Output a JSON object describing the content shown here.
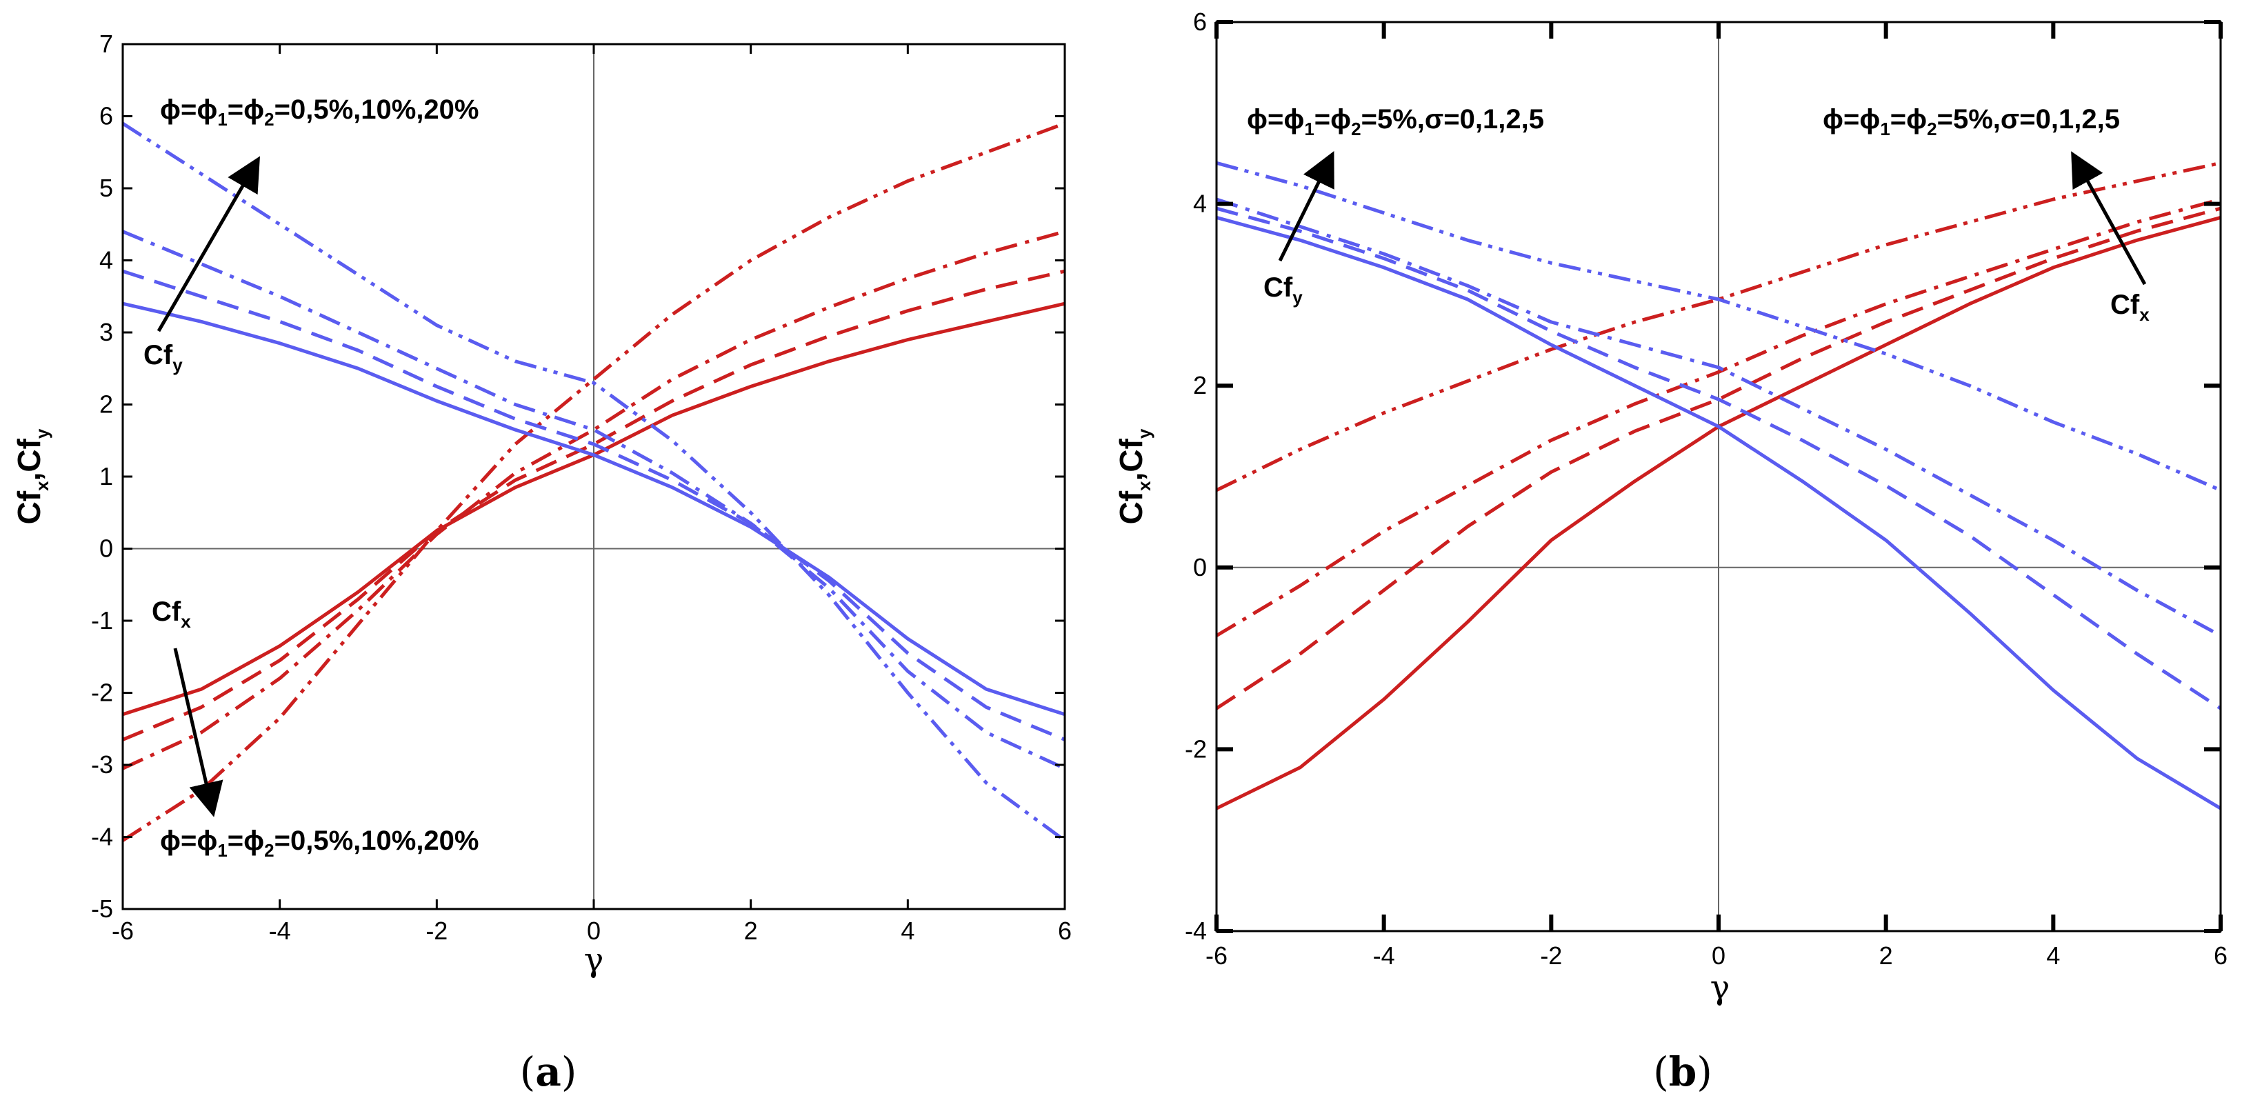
{
  "colors": {
    "red": "#cc1f1f",
    "blue": "#5a5cf0",
    "axis": "#000000",
    "ref": "#666666"
  },
  "chart_data": [
    {
      "type": "line",
      "panel": "a",
      "caption": {
        "open": "(",
        "letter": "a",
        "close": ")"
      },
      "xlabel": "γ",
      "ylabel": {
        "main1": "Cf",
        "sub1": "x",
        "sep": ",Cf",
        "sub2": "y"
      },
      "xlim": [
        -6,
        6
      ],
      "ylim": [
        -5,
        7
      ],
      "xticks": [
        -6,
        -4,
        -2,
        0,
        2,
        4,
        6
      ],
      "yticks": [
        -5,
        -4,
        -3,
        -2,
        -1,
        0,
        1,
        2,
        3,
        4,
        5,
        6,
        7
      ],
      "series": [
        {
          "name": "Cfx φ=0",
          "color": "red",
          "dash": "solid",
          "x": [
            -6,
            -5,
            -4,
            -3,
            -2,
            -1,
            0,
            1,
            2,
            3,
            4,
            5,
            6
          ],
          "y": [
            -2.3,
            -1.95,
            -1.35,
            -0.6,
            0.25,
            0.85,
            1.3,
            1.85,
            2.25,
            2.6,
            2.9,
            3.15,
            3.4
          ]
        },
        {
          "name": "Cfx φ=5%",
          "color": "red",
          "dash": "dash",
          "x": [
            -6,
            -5,
            -4,
            -3,
            -2,
            -1,
            0,
            1,
            2,
            3,
            4,
            5,
            6
          ],
          "y": [
            -2.65,
            -2.2,
            -1.55,
            -0.7,
            0.25,
            0.95,
            1.45,
            2.05,
            2.55,
            2.95,
            3.3,
            3.6,
            3.85
          ]
        },
        {
          "name": "Cfx φ=10%",
          "color": "red",
          "dash": "dashdot",
          "x": [
            -6,
            -5,
            -4,
            -3,
            -2,
            -1,
            0,
            1,
            2,
            3,
            4,
            5,
            6
          ],
          "y": [
            -3.05,
            -2.55,
            -1.8,
            -0.85,
            0.2,
            1.05,
            1.65,
            2.35,
            2.9,
            3.35,
            3.75,
            4.1,
            4.4
          ]
        },
        {
          "name": "Cfx φ=20%",
          "color": "red",
          "dash": "dashdotdot",
          "x": [
            -6,
            -5,
            -4,
            -3,
            -2,
            -1,
            0,
            1,
            2,
            3,
            4,
            5,
            6
          ],
          "y": [
            -4.05,
            -3.35,
            -2.35,
            -1.05,
            0.25,
            1.45,
            2.35,
            3.25,
            4.0,
            4.6,
            5.1,
            5.5,
            5.9
          ]
        },
        {
          "name": "Cfy φ=0",
          "color": "blue",
          "dash": "solid",
          "x": [
            -6,
            -5,
            -4,
            -3,
            -2,
            -1,
            0,
            1,
            2,
            3,
            4,
            5,
            6
          ],
          "y": [
            3.4,
            3.15,
            2.85,
            2.5,
            2.05,
            1.65,
            1.3,
            0.85,
            0.3,
            -0.4,
            -1.25,
            -1.95,
            -2.3
          ]
        },
        {
          "name": "Cfy φ=5%",
          "color": "blue",
          "dash": "dash",
          "x": [
            -6,
            -5,
            -4,
            -3,
            -2,
            -1,
            0,
            1,
            2,
            3,
            4,
            5,
            6
          ],
          "y": [
            3.85,
            3.5,
            3.15,
            2.75,
            2.25,
            1.8,
            1.45,
            0.95,
            0.35,
            -0.45,
            -1.45,
            -2.2,
            -2.65
          ]
        },
        {
          "name": "Cfy φ=10%",
          "color": "blue",
          "dash": "dashdot",
          "x": [
            -6,
            -5,
            -4,
            -3,
            -2,
            -1,
            0,
            1,
            2,
            3,
            4,
            5,
            6
          ],
          "y": [
            4.4,
            3.95,
            3.5,
            3.0,
            2.5,
            2.0,
            1.65,
            1.05,
            0.35,
            -0.55,
            -1.7,
            -2.55,
            -3.05
          ]
        },
        {
          "name": "Cfy φ=20%",
          "color": "blue",
          "dash": "dashdotdot",
          "x": [
            -6,
            -5,
            -4,
            -3,
            -2,
            -1,
            0,
            1,
            2,
            3,
            4,
            5,
            6
          ],
          "y": [
            5.9,
            5.2,
            4.5,
            3.8,
            3.1,
            2.6,
            2.3,
            1.5,
            0.5,
            -0.65,
            -2.0,
            -3.25,
            -4.05
          ]
        }
      ],
      "annotations": {
        "top": {
          "pre": "ϕ=ϕ",
          "s1": "1",
          "mid": "=ϕ",
          "s2": "2",
          "post": "=0,5%,10%,20%"
        },
        "bottom": {
          "pre": "ϕ=ϕ",
          "s1": "1",
          "mid": "=ϕ",
          "s2": "2",
          "post": "=0,5%,10%,20%"
        },
        "cfy": {
          "main": "Cf",
          "sub": "y"
        },
        "cfx": {
          "main": "Cf",
          "sub": "x"
        }
      }
    },
    {
      "type": "line",
      "panel": "b",
      "caption": {
        "open": "(",
        "letter": "b",
        "close": ")"
      },
      "xlabel": "γ",
      "ylabel": {
        "main1": "Cf",
        "sub1": "x",
        "sep": ",Cf",
        "sub2": "y"
      },
      "xlim": [
        -6,
        6
      ],
      "ylim": [
        -4,
        6
      ],
      "xticks": [
        -6,
        -4,
        -2,
        0,
        2,
        4,
        6
      ],
      "yticks": [
        -4,
        -2,
        0,
        2,
        4,
        6
      ],
      "series": [
        {
          "name": "Cfx σ=0",
          "color": "red",
          "dash": "solid",
          "x": [
            -6,
            -5,
            -4,
            -3,
            -2,
            -1,
            0,
            1,
            2,
            3,
            4,
            5,
            6
          ],
          "y": [
            -2.65,
            -2.2,
            -1.45,
            -0.6,
            0.3,
            0.95,
            1.55,
            2.0,
            2.45,
            2.9,
            3.3,
            3.6,
            3.85
          ]
        },
        {
          "name": "Cfx σ=1",
          "color": "red",
          "dash": "dash",
          "x": [
            -6,
            -5,
            -4,
            -3,
            -2,
            -1,
            0,
            1,
            2,
            3,
            4,
            5,
            6
          ],
          "y": [
            -1.55,
            -0.95,
            -0.25,
            0.45,
            1.05,
            1.5,
            1.85,
            2.3,
            2.7,
            3.05,
            3.4,
            3.7,
            3.95
          ]
        },
        {
          "name": "Cfx σ=2",
          "color": "red",
          "dash": "dashdot",
          "x": [
            -6,
            -5,
            -4,
            -3,
            -2,
            -1,
            0,
            1,
            2,
            3,
            4,
            5,
            6
          ],
          "y": [
            -0.75,
            -0.2,
            0.4,
            0.9,
            1.4,
            1.8,
            2.15,
            2.55,
            2.9,
            3.2,
            3.5,
            3.8,
            4.05
          ]
        },
        {
          "name": "Cfx σ=5",
          "color": "red",
          "dash": "dashdotdot",
          "x": [
            -6,
            -5,
            -4,
            -3,
            -2,
            -1,
            0,
            1,
            2,
            3,
            4,
            5,
            6
          ],
          "y": [
            0.85,
            1.3,
            1.7,
            2.05,
            2.4,
            2.7,
            2.95,
            3.25,
            3.55,
            3.8,
            4.05,
            4.25,
            4.45
          ]
        },
        {
          "name": "Cfy σ=0",
          "color": "blue",
          "dash": "solid",
          "x": [
            -6,
            -5,
            -4,
            -3,
            -2,
            -1,
            0,
            1,
            2,
            3,
            4,
            5,
            6
          ],
          "y": [
            3.85,
            3.6,
            3.3,
            2.95,
            2.45,
            2.0,
            1.55,
            0.95,
            0.3,
            -0.5,
            -1.35,
            -2.1,
            -2.65
          ]
        },
        {
          "name": "Cfy σ=1",
          "color": "blue",
          "dash": "dash",
          "x": [
            -6,
            -5,
            -4,
            -3,
            -2,
            -1,
            0,
            1,
            2,
            3,
            4,
            5,
            6
          ],
          "y": [
            3.95,
            3.7,
            3.4,
            3.05,
            2.6,
            2.2,
            1.85,
            1.4,
            0.9,
            0.35,
            -0.3,
            -0.95,
            -1.55
          ]
        },
        {
          "name": "Cfy σ=2",
          "color": "blue",
          "dash": "dashdot",
          "x": [
            -6,
            -5,
            -4,
            -3,
            -2,
            -1,
            0,
            1,
            2,
            3,
            4,
            5,
            6
          ],
          "y": [
            4.05,
            3.75,
            3.45,
            3.1,
            2.7,
            2.45,
            2.2,
            1.75,
            1.3,
            0.8,
            0.3,
            -0.25,
            -0.75
          ]
        },
        {
          "name": "Cfy σ=5",
          "color": "blue",
          "dash": "dashdotdot",
          "x": [
            -6,
            -5,
            -4,
            -3,
            -2,
            -1,
            0,
            1,
            2,
            3,
            4,
            5,
            6
          ],
          "y": [
            4.45,
            4.2,
            3.9,
            3.6,
            3.35,
            3.15,
            2.95,
            2.65,
            2.35,
            2.0,
            1.6,
            1.25,
            0.85
          ]
        }
      ],
      "annotations": {
        "topleft": {
          "pre": "ϕ=ϕ",
          "s1": "1",
          "mid": "=ϕ",
          "s2": "2",
          "post": "=5%,σ=0,1,2,5"
        },
        "topright": {
          "pre": "ϕ=ϕ",
          "s1": "1",
          "mid": "=ϕ",
          "s2": "2",
          "post": "=5%,σ=0,1,2,5"
        },
        "cfy": {
          "main": "Cf",
          "sub": "y"
        },
        "cfx": {
          "main": "Cf",
          "sub": "x"
        }
      }
    }
  ]
}
